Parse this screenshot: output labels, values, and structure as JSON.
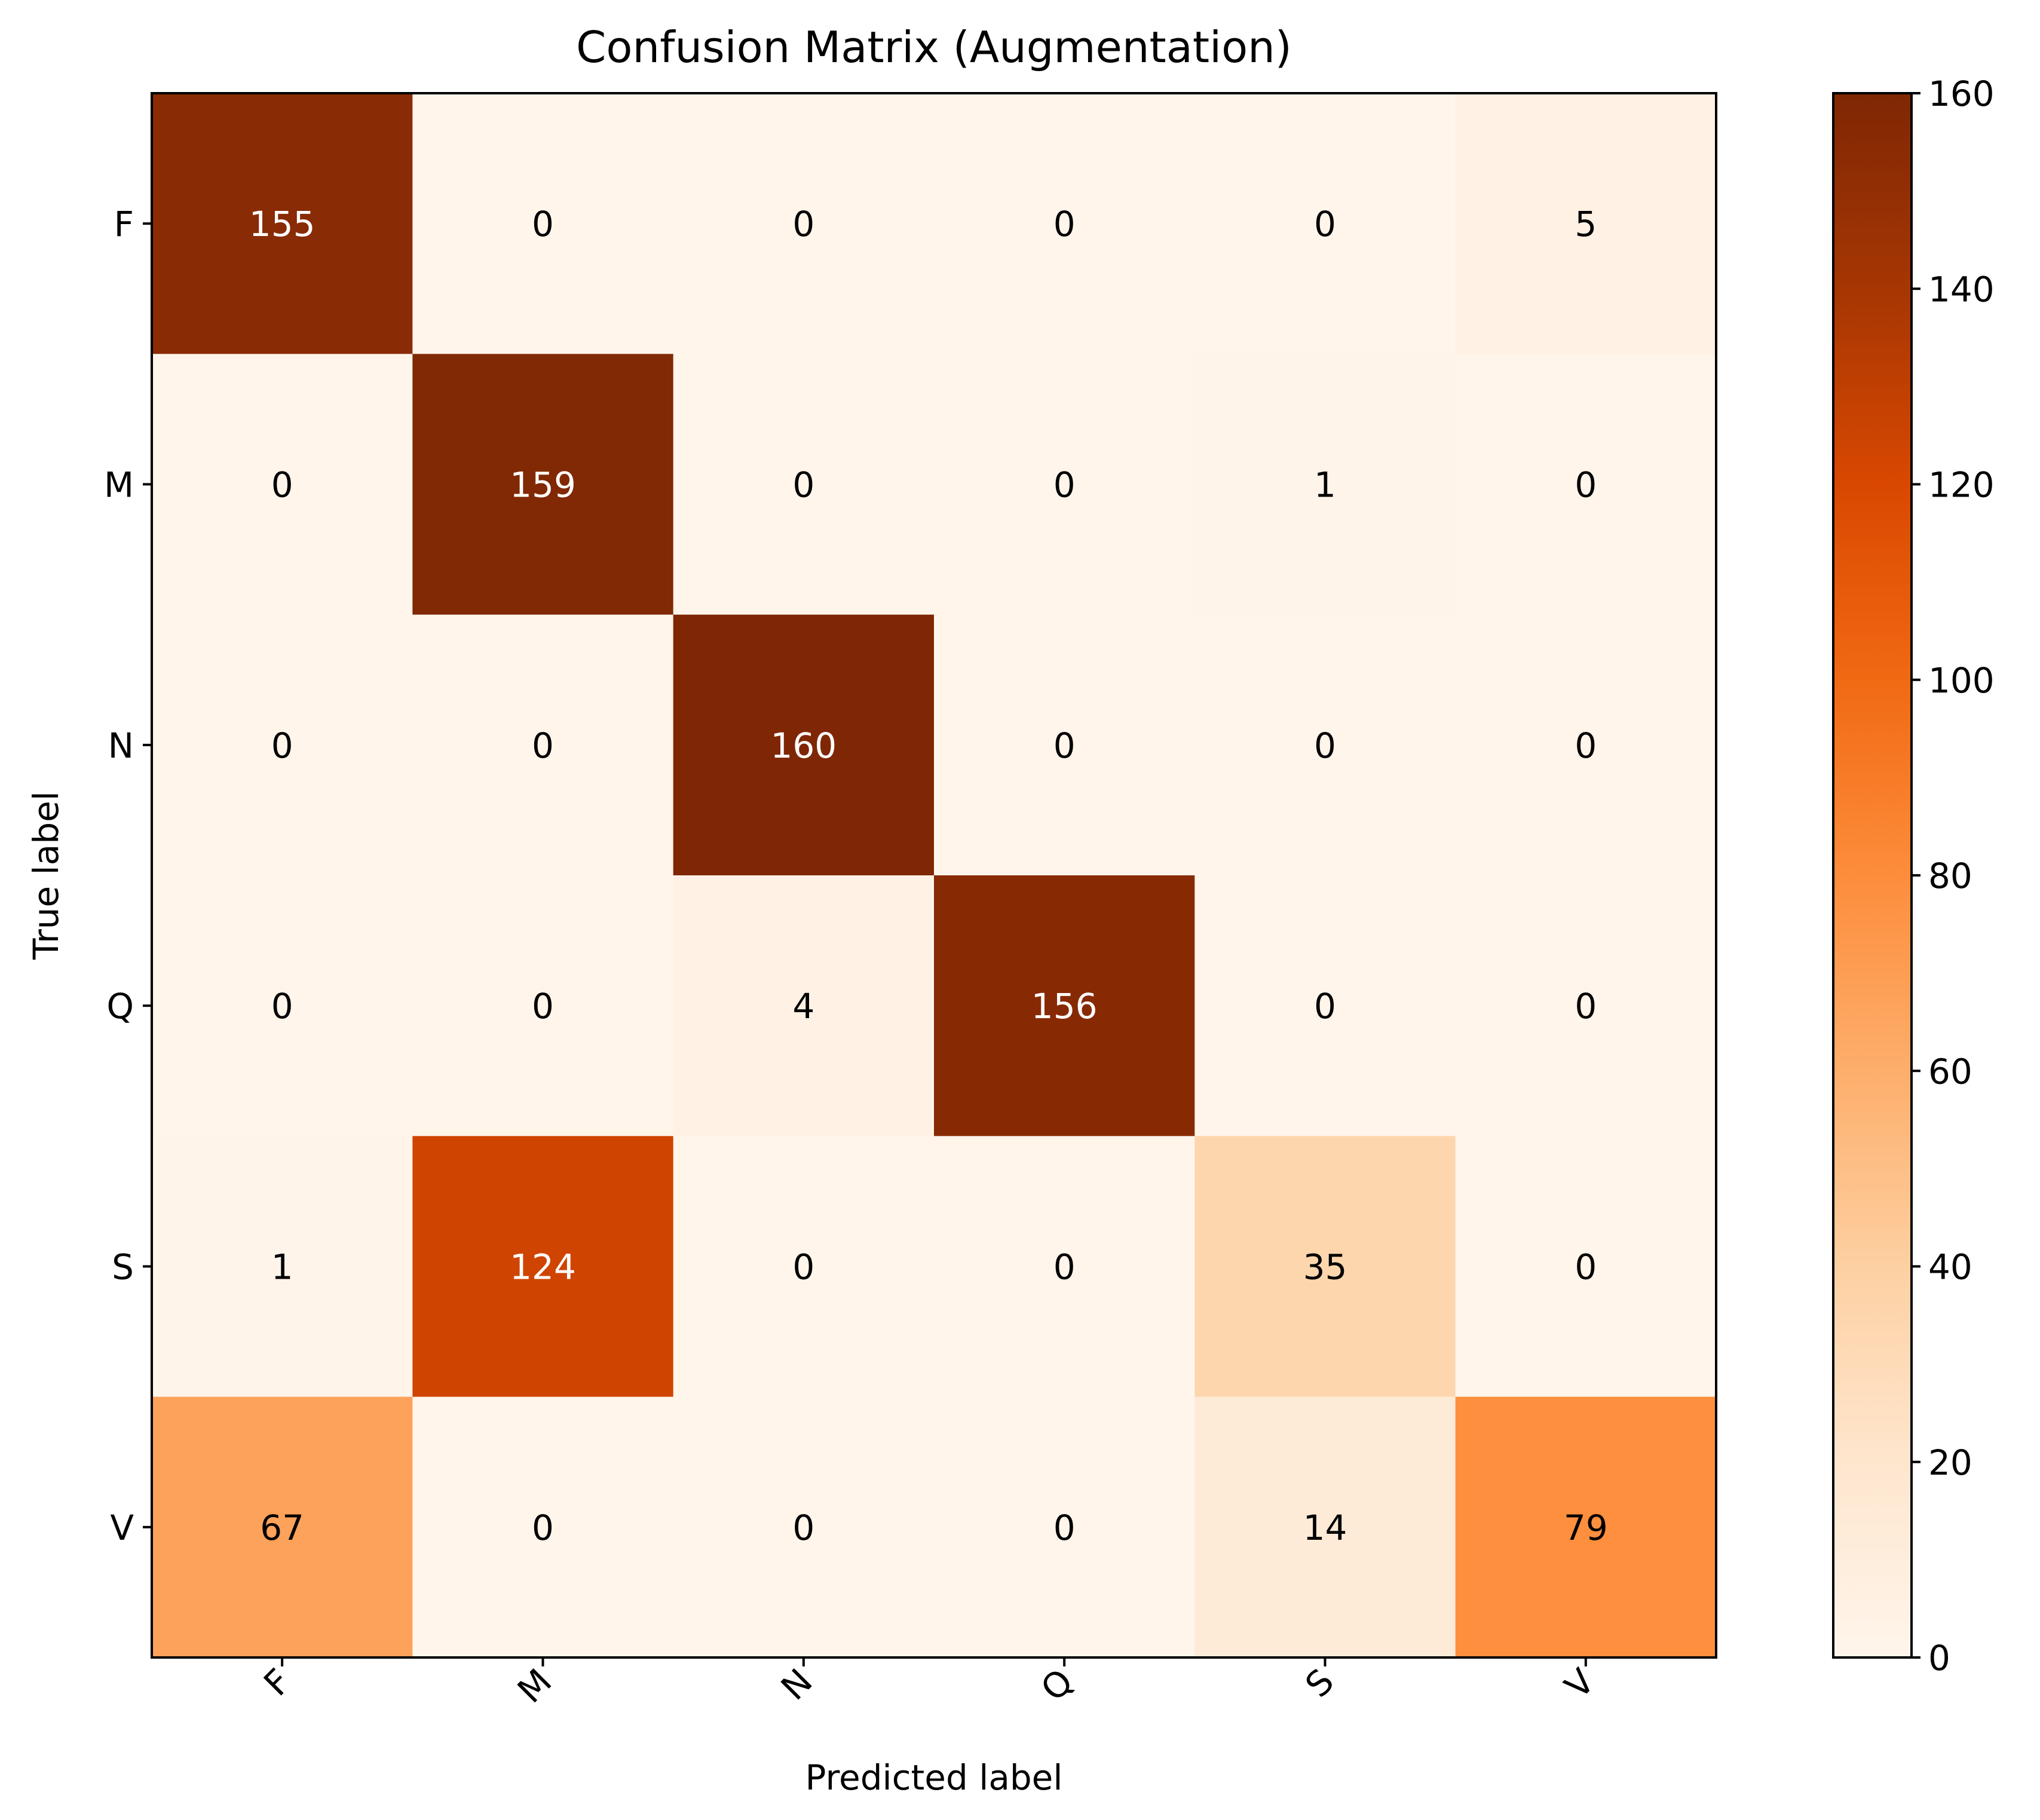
{
  "chart_data": {
    "type": "heatmap",
    "title": "Confusion Matrix (Augmentation)",
    "xlabel": "Predicted label",
    "ylabel": "True label",
    "x_categories": [
      "F",
      "M",
      "N",
      "Q",
      "S",
      "V"
    ],
    "y_categories": [
      "F",
      "M",
      "N",
      "Q",
      "S",
      "V"
    ],
    "matrix": [
      [
        155,
        0,
        0,
        0,
        0,
        5
      ],
      [
        0,
        159,
        0,
        0,
        1,
        0
      ],
      [
        0,
        0,
        160,
        0,
        0,
        0
      ],
      [
        0,
        0,
        4,
        156,
        0,
        0
      ],
      [
        1,
        124,
        0,
        0,
        35,
        0
      ],
      [
        67,
        0,
        0,
        0,
        14,
        79
      ]
    ],
    "colorbar": {
      "range": [
        0,
        160
      ],
      "ticks": [
        0,
        20,
        40,
        60,
        80,
        100,
        120,
        140,
        160
      ],
      "colormap": "Oranges"
    },
    "x_tick_rotation": "45 degrees",
    "colors": {
      "low": "#fff5eb",
      "high": "#7f2704",
      "text_dark": "#000000",
      "text_light": "#ffffff"
    }
  }
}
